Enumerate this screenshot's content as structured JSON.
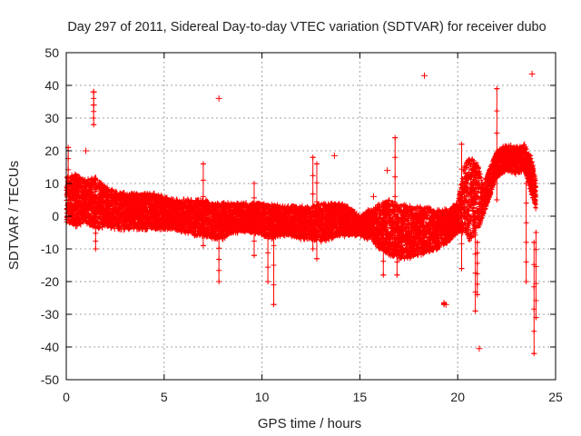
{
  "chart_data": {
    "type": "scatter",
    "title": "Day 297 of 2011, Sidereal Day-to-day VTEC variation (SDTVAR) for receiver dubo",
    "xlabel": "GPS time / hours",
    "ylabel": "SDTVAR / TECUs",
    "xlim": [
      0,
      25
    ],
    "ylim": [
      -50,
      50
    ],
    "xticks": [
      0,
      5,
      10,
      15,
      20,
      25
    ],
    "yticks": [
      -50,
      -40,
      -30,
      -20,
      -10,
      0,
      10,
      20,
      30,
      40,
      50
    ],
    "grid": true,
    "series_color": "#ff0000",
    "marker": "plus-with-errorbars",
    "band": [
      [
        0.0,
        -2,
        12
      ],
      [
        0.5,
        -3,
        13
      ],
      [
        1.0,
        -2,
        11
      ],
      [
        1.5,
        -4,
        12
      ],
      [
        2.0,
        -3,
        9
      ],
      [
        2.5,
        -4,
        8
      ],
      [
        3.0,
        -4,
        7
      ],
      [
        3.5,
        -4,
        7
      ],
      [
        4.0,
        -4,
        7
      ],
      [
        4.5,
        -4,
        7
      ],
      [
        5.0,
        -4,
        6
      ],
      [
        5.5,
        -4,
        5
      ],
      [
        6.0,
        -5,
        5
      ],
      [
        6.5,
        -6,
        5
      ],
      [
        7.0,
        -6,
        5
      ],
      [
        7.5,
        -7,
        4
      ],
      [
        8.0,
        -7,
        4
      ],
      [
        8.5,
        -5,
        4
      ],
      [
        9.0,
        -5,
        4
      ],
      [
        9.5,
        -5,
        4
      ],
      [
        10.0,
        -6,
        4
      ],
      [
        10.5,
        -7,
        4
      ],
      [
        11.0,
        -6,
        3
      ],
      [
        11.5,
        -6,
        3
      ],
      [
        12.0,
        -7,
        3
      ],
      [
        12.5,
        -7,
        3
      ],
      [
        13.0,
        -8,
        4
      ],
      [
        13.5,
        -7,
        4
      ],
      [
        14.0,
        -6,
        4
      ],
      [
        14.5,
        -6,
        3
      ],
      [
        15.0,
        -6,
        0
      ],
      [
        15.5,
        -7,
        2
      ],
      [
        16.0,
        -10,
        4
      ],
      [
        16.5,
        -12,
        5
      ],
      [
        17.0,
        -13,
        4
      ],
      [
        17.5,
        -13,
        3
      ],
      [
        18.0,
        -12,
        3
      ],
      [
        18.5,
        -11,
        3
      ],
      [
        19.0,
        -10,
        2
      ],
      [
        19.5,
        -8,
        2
      ],
      [
        20.0,
        -5,
        4
      ],
      [
        20.3,
        -5,
        15
      ],
      [
        20.6,
        -8,
        18
      ],
      [
        21.0,
        -5,
        17
      ],
      [
        21.3,
        0,
        10
      ],
      [
        22.0,
        12,
        20
      ],
      [
        22.5,
        14,
        22
      ],
      [
        23.0,
        13,
        21
      ],
      [
        23.4,
        14,
        22
      ],
      [
        23.8,
        6,
        18
      ],
      [
        24.0,
        2,
        10
      ]
    ],
    "outliers": [
      {
        "x": 1.4,
        "y": 38
      },
      {
        "x": 1.4,
        "y": 34
      },
      {
        "x": 7.8,
        "y": 36
      },
      {
        "x": 13.7,
        "y": 18.5
      },
      {
        "x": 15.7,
        "y": 6
      },
      {
        "x": 18.3,
        "y": 43
      },
      {
        "x": 19.4,
        "y": -27
      },
      {
        "x": 21.1,
        "y": -40.5
      },
      {
        "x": 23.8,
        "y": 43.5
      },
      {
        "x": 1.0,
        "y": 20
      },
      {
        "x": 16.4,
        "y": 14
      }
    ],
    "errorbars": [
      {
        "x": 0.1,
        "lo": 4,
        "hi": 21
      },
      {
        "x": 1.4,
        "lo": 28,
        "hi": 38
      },
      {
        "x": 1.5,
        "lo": -10,
        "hi": 2
      },
      {
        "x": 7.0,
        "lo": -9,
        "hi": 16
      },
      {
        "x": 7.8,
        "lo": -20,
        "hi": -3
      },
      {
        "x": 9.6,
        "lo": -12,
        "hi": 10
      },
      {
        "x": 10.3,
        "lo": -20,
        "hi": 2
      },
      {
        "x": 10.6,
        "lo": -27,
        "hi": 3
      },
      {
        "x": 12.6,
        "lo": -10,
        "hi": 18
      },
      {
        "x": 12.8,
        "lo": -13,
        "hi": 16
      },
      {
        "x": 16.2,
        "lo": -18,
        "hi": 3
      },
      {
        "x": 16.8,
        "lo": -6,
        "hi": 24
      },
      {
        "x": 16.9,
        "lo": -18,
        "hi": 2
      },
      {
        "x": 20.2,
        "lo": -16,
        "hi": 22
      },
      {
        "x": 20.9,
        "lo": -29,
        "hi": 0
      },
      {
        "x": 21.0,
        "lo": -24,
        "hi": -8
      },
      {
        "x": 22.0,
        "lo": 5,
        "hi": 39
      },
      {
        "x": 23.5,
        "lo": -20,
        "hi": 10
      },
      {
        "x": 23.9,
        "lo": -42,
        "hi": -8
      },
      {
        "x": 24.0,
        "lo": -31,
        "hi": -5
      },
      {
        "x": 19.3,
        "lo": -27,
        "hi": -26.5
      }
    ],
    "density_points": 14000
  }
}
